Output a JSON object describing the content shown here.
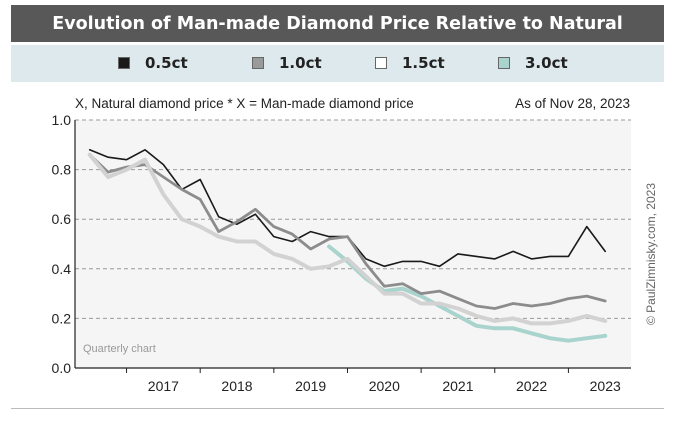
{
  "chart_data": {
    "type": "line",
    "title": "Evolution of Man-made Diamond Price Relative to Natural",
    "subtitle": "X, Natural diamond price * X = Man-made diamond price",
    "date_note": "As of Nov 28, 2023",
    "credit": "© PaulZimnisky.com, 2023",
    "annotation": "Quarterly chart",
    "ylim": [
      0,
      1.0
    ],
    "y_ticks": [
      "0.0",
      "0.2",
      "0.4",
      "0.6",
      "0.8",
      "1.0"
    ],
    "y_tick_values": [
      0,
      0.2,
      0.4,
      0.6,
      0.8,
      1.0
    ],
    "x_ticks": [
      "2017",
      "2018",
      "2019",
      "2020",
      "2021",
      "2022",
      "2023"
    ],
    "x_tick_values": [
      2017.0,
      2018.0,
      2019.0,
      2020.0,
      2021.0,
      2022.0,
      2023.0
    ],
    "xlim": [
      2016.3,
      2023.85
    ],
    "grid": "horizontal dashed",
    "legend_position": "top",
    "series": [
      {
        "name": "0.5ct",
        "color": "#1a1a1a",
        "legend_swatch": "#1a1a1a",
        "x": [
          2016.5,
          2016.75,
          2017.0,
          2017.25,
          2017.5,
          2017.75,
          2018.0,
          2018.25,
          2018.5,
          2018.75,
          2019.0,
          2019.25,
          2019.5,
          2019.75,
          2020.0,
          2020.25,
          2020.5,
          2020.75,
          2021.0,
          2021.25,
          2021.5,
          2021.75,
          2022.0,
          2022.25,
          2022.5,
          2022.75,
          2023.0,
          2023.25,
          2023.5
        ],
        "values": [
          0.88,
          0.85,
          0.84,
          0.88,
          0.82,
          0.72,
          0.76,
          0.61,
          0.58,
          0.62,
          0.53,
          0.51,
          0.55,
          0.53,
          0.53,
          0.44,
          0.41,
          0.43,
          0.43,
          0.41,
          0.46,
          0.45,
          0.44,
          0.47,
          0.44,
          0.45,
          0.45,
          0.57,
          0.47
        ]
      },
      {
        "name": "1.0ct",
        "color": "#8c8c8c",
        "legend_swatch": "#9a9a9a",
        "x": [
          2016.5,
          2016.75,
          2017.0,
          2017.25,
          2017.5,
          2017.75,
          2018.0,
          2018.25,
          2018.5,
          2018.75,
          2019.0,
          2019.25,
          2019.5,
          2019.75,
          2020.0,
          2020.25,
          2020.5,
          2020.75,
          2021.0,
          2021.25,
          2021.5,
          2021.75,
          2022.0,
          2022.25,
          2022.5,
          2022.75,
          2023.0,
          2023.25,
          2023.5
        ],
        "values": [
          0.86,
          0.79,
          0.81,
          0.82,
          0.77,
          0.72,
          0.68,
          0.55,
          0.59,
          0.64,
          0.57,
          0.54,
          0.48,
          0.52,
          0.53,
          0.42,
          0.33,
          0.34,
          0.3,
          0.31,
          0.28,
          0.25,
          0.24,
          0.26,
          0.25,
          0.26,
          0.28,
          0.29,
          0.27
        ]
      },
      {
        "name": "1.5ct",
        "color": "#d2d2d2",
        "legend_swatch": "#ffffff",
        "x": [
          2016.5,
          2016.75,
          2017.0,
          2017.25,
          2017.5,
          2017.75,
          2018.0,
          2018.25,
          2018.5,
          2018.75,
          2019.0,
          2019.25,
          2019.5,
          2019.75,
          2020.0,
          2020.25,
          2020.5,
          2020.75,
          2021.0,
          2021.25,
          2021.5,
          2021.75,
          2022.0,
          2022.25,
          2022.5,
          2022.75,
          2023.0,
          2023.25,
          2023.5
        ],
        "values": [
          0.86,
          0.77,
          0.8,
          0.84,
          0.7,
          0.6,
          0.57,
          0.53,
          0.51,
          0.51,
          0.46,
          0.44,
          0.4,
          0.41,
          0.44,
          0.37,
          0.3,
          0.3,
          0.26,
          0.26,
          0.24,
          0.21,
          0.19,
          0.2,
          0.18,
          0.18,
          0.19,
          0.21,
          0.19
        ]
      },
      {
        "name": "3.0ct",
        "color": "#a9d3cd",
        "legend_swatch": "#a9d3cd",
        "x": [
          2019.75,
          2020.0,
          2020.25,
          2020.5,
          2020.75,
          2021.0,
          2021.25,
          2021.5,
          2021.75,
          2022.0,
          2022.25,
          2022.5,
          2022.75,
          2023.0,
          2023.25,
          2023.5
        ],
        "values": [
          0.49,
          0.43,
          0.36,
          0.31,
          0.32,
          0.29,
          0.25,
          0.21,
          0.17,
          0.16,
          0.16,
          0.14,
          0.12,
          0.11,
          0.12,
          0.13
        ]
      }
    ]
  }
}
